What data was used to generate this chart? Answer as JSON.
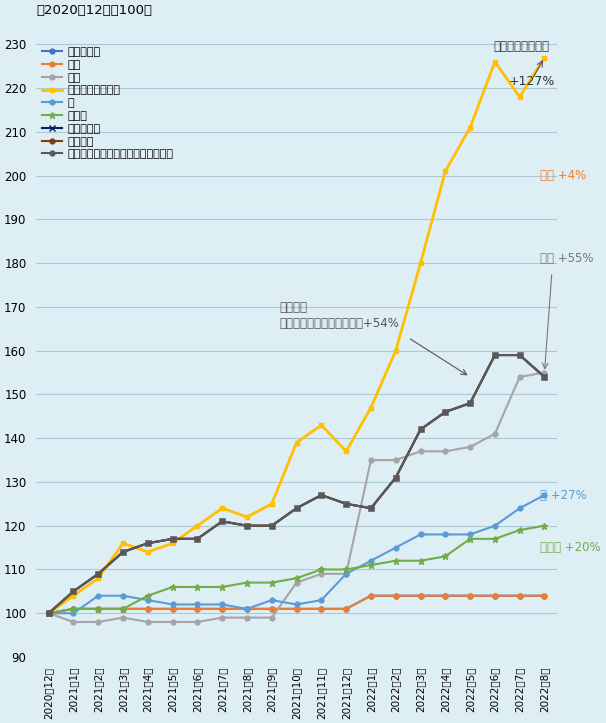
{
  "title": "（2020年12月＝100）",
  "background_color": "#deeef5",
  "ylim": [
    90,
    235
  ],
  "yticks": [
    90,
    100,
    110,
    120,
    130,
    140,
    150,
    160,
    170,
    180,
    190,
    200,
    210,
    220,
    230
  ],
  "x_labels": [
    "2020年12月",
    "2021年1月",
    "2021年2月",
    "2021年3月",
    "2021年4月",
    "2021年5月",
    "2021年6月",
    "2021年7月",
    "2021年8月",
    "2021年9月",
    "2021年10月",
    "2021年11月",
    "2021年12月",
    "2022年1月",
    "2022年2月",
    "2022年3月",
    "2022年4月",
    "2022年5月",
    "2022年6月",
    "2022年7月",
    "2022年8月"
  ],
  "series": {
    "エネルギー": {
      "color": "#4472C4",
      "marker": "o",
      "markersize": 3.5,
      "linewidth": 1.5,
      "values": [
        100,
        101,
        101,
        101,
        101,
        101,
        101,
        101,
        101,
        101,
        101,
        101,
        101,
        104,
        104,
        104,
        104,
        104,
        104,
        104,
        104
      ]
    },
    "電力": {
      "color": "#ED7D31",
      "marker": "o",
      "markersize": 3.5,
      "linewidth": 1.5,
      "values": [
        100,
        101,
        101,
        101,
        101,
        101,
        101,
        101,
        101,
        101,
        101,
        101,
        101,
        104,
        104,
        104,
        104,
        104,
        104,
        104,
        104
      ]
    },
    "ガス": {
      "color": "#A5A5A5",
      "marker": "o",
      "markersize": 3.5,
      "linewidth": 1.5,
      "values": [
        100,
        98,
        98,
        99,
        98,
        98,
        98,
        99,
        99,
        99,
        107,
        109,
        109,
        135,
        135,
        137,
        137,
        138,
        141,
        154,
        155
      ]
    },
    "暖房燃料（灯油）": {
      "color": "#FFC000",
      "marker": "s",
      "markersize": 3.5,
      "linewidth": 2.0,
      "values": [
        100,
        104,
        108,
        116,
        114,
        116,
        120,
        124,
        122,
        125,
        139,
        143,
        137,
        147,
        160,
        180,
        201,
        211,
        226,
        218,
        227
      ]
    },
    "薪": {
      "color": "#5B9BD5",
      "marker": "o",
      "markersize": 3.5,
      "linewidth": 1.5,
      "values": [
        100,
        100,
        104,
        104,
        103,
        102,
        102,
        102,
        101,
        103,
        102,
        103,
        109,
        112,
        115,
        118,
        118,
        118,
        120,
        124,
        127
      ]
    },
    "地域熱": {
      "color": "#70AD47",
      "marker": "*",
      "markersize": 5,
      "linewidth": 1.5,
      "values": [
        100,
        101,
        101,
        101,
        104,
        106,
        106,
        106,
        107,
        107,
        108,
        110,
        110,
        111,
        112,
        112,
        113,
        117,
        117,
        119,
        120
      ]
    },
    "ディーゼル": {
      "color": "#002060",
      "marker": "x",
      "markersize": 4,
      "linewidth": 1.5,
      "values": [
        100,
        105,
        109,
        114,
        116,
        117,
        117,
        121,
        120,
        120,
        124,
        127,
        125,
        124,
        131,
        142,
        146,
        148,
        159,
        159,
        154
      ]
    },
    "ガソリン": {
      "color": "#843C0C",
      "marker": "o",
      "markersize": 3.5,
      "linewidth": 1.5,
      "values": [
        100,
        105,
        109,
        114,
        116,
        117,
        117,
        121,
        120,
        120,
        124,
        127,
        125,
        124,
        131,
        142,
        146,
        148,
        159,
        159,
        154
      ]
    },
    "運輸燃料（ディーゼル、ガソリン）": {
      "color": "#595959",
      "marker": "o",
      "markersize": 3.5,
      "linewidth": 1.5,
      "values": [
        100,
        105,
        109,
        114,
        116,
        117,
        117,
        121,
        120,
        120,
        124,
        127,
        125,
        124,
        131,
        142,
        146,
        148,
        159,
        159,
        154
      ]
    }
  },
  "legend_order": [
    "エネルギー",
    "電力",
    "ガス",
    "暖房燃料（灯油）",
    "薪",
    "地域熱",
    "ディーゼル",
    "ガソリン",
    "運輸燃料（ディーゼル、ガソリン）"
  ]
}
